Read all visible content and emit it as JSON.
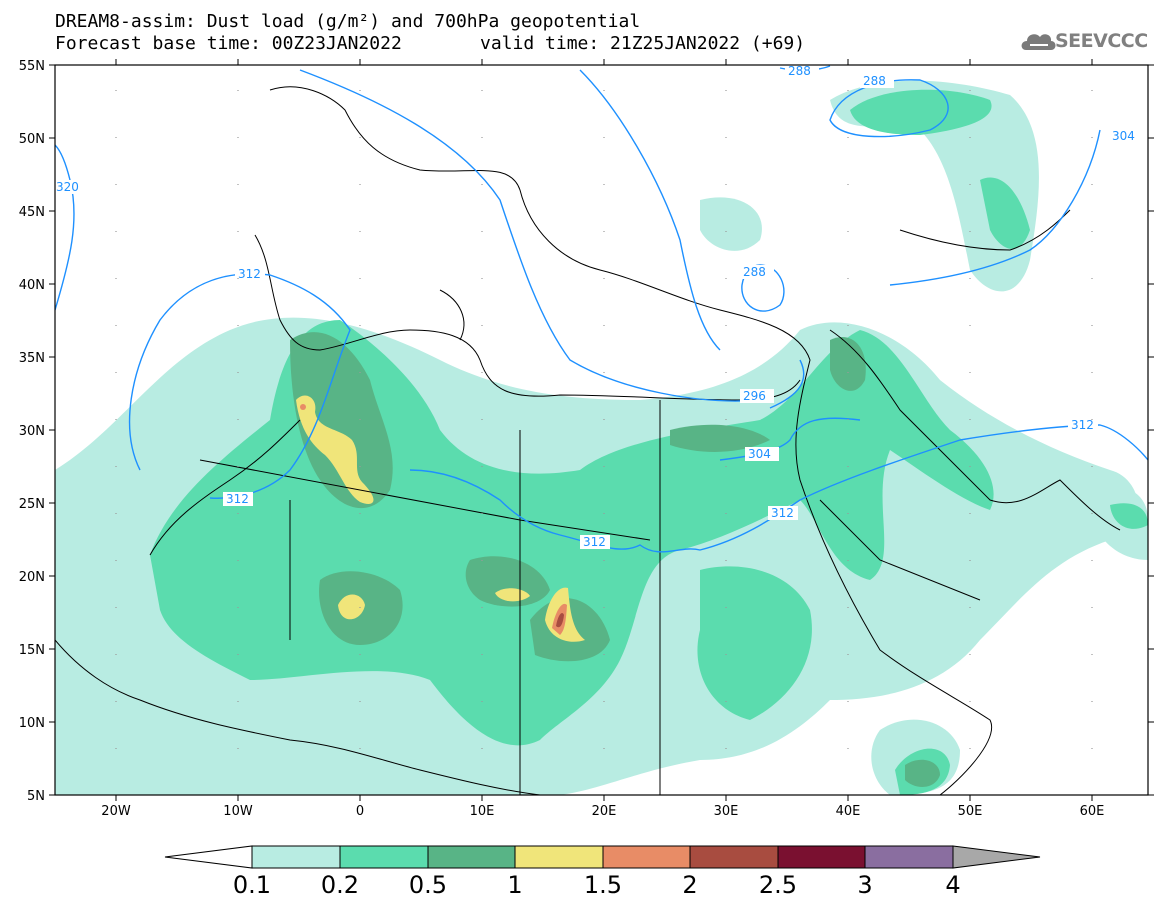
{
  "title": {
    "line1": "DREAM8-assim: Dust load (g/m²) and 700hPa geopotential",
    "base_time": "Forecast base time: 00Z23JAN2022",
    "valid_time": "valid time: 21Z25JAN2022 (+69)"
  },
  "logo": {
    "text": "SEEVCCC",
    "icon": "cloud-icon"
  },
  "map": {
    "lon_ticks": [
      "20W",
      "10W",
      "0",
      "10E",
      "20E",
      "30E",
      "40E",
      "50E",
      "60E"
    ],
    "lat_ticks": [
      "55N",
      "50N",
      "45N",
      "40N",
      "35N",
      "30N",
      "25N",
      "20N",
      "15N",
      "10N",
      "5N"
    ],
    "contours": [
      {
        "label": "288"
      },
      {
        "label": "288"
      },
      {
        "label": "288"
      },
      {
        "label": "296"
      },
      {
        "label": "304"
      },
      {
        "label": "304"
      },
      {
        "label": "312"
      },
      {
        "label": "312"
      },
      {
        "label": "312"
      },
      {
        "label": "312"
      },
      {
        "label": "312"
      },
      {
        "label": "320"
      }
    ]
  },
  "colorbar": {
    "levels": [
      "0.1",
      "0.2",
      "0.5",
      "1",
      "1.5",
      "2",
      "2.5",
      "3",
      "4"
    ],
    "colors": [
      "#ffffff",
      "#b8ece2",
      "#5bdcae",
      "#58b486",
      "#f0e57a",
      "#e88c66",
      "#a84c40",
      "#7a1030",
      "#8a6ea0",
      "#a8a8a8"
    ]
  }
}
